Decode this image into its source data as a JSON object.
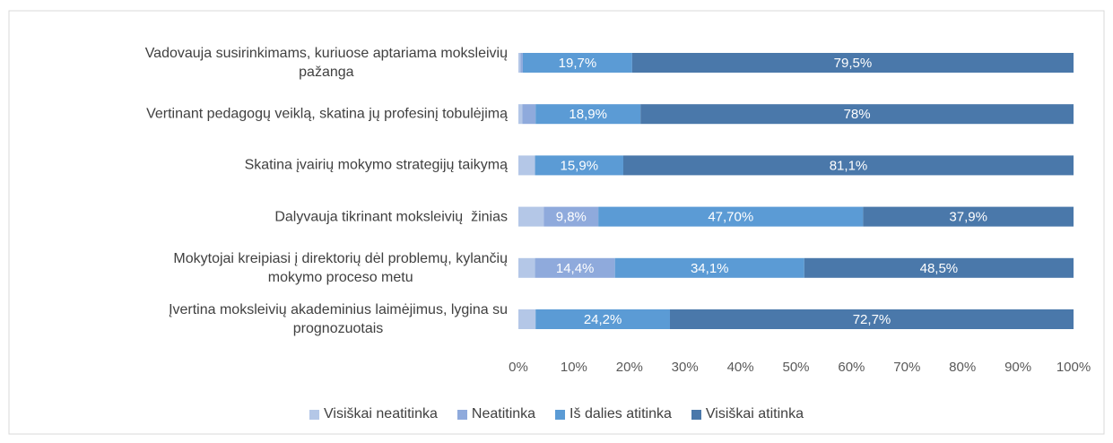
{
  "chart_data": {
    "type": "stacked-bar-horizontal",
    "categories": [
      "Vadovauja susirinkimams, kuriuose aptariama moksleivių\npažanga",
      "Vertinant pedagogų veiklą, skatina jų profesinį tobulėjimą",
      "Skatina įvairių mokymo strategijų taikymą",
      "Dalyvauja tikrinant moksleivių  žinias",
      "Mokytojai kreipiasi į direktorių dėl problemų, kylančių\nmokymo proceso metu",
      "Įvertina moksleivių akademinius laimėjimus, lygina su\nprognozuotais"
    ],
    "series": [
      {
        "name": "Visiškai neatitinka",
        "color": "#b4c7e7",
        "values": [
          0.4,
          0.7,
          3,
          4.6,
          3,
          3.1
        ],
        "value_labels": [
          null,
          null,
          null,
          null,
          null,
          null
        ]
      },
      {
        "name": "Neatitinka",
        "color": "#8faadc",
        "values": [
          0.4,
          2.4,
          0,
          9.8,
          14.4,
          0
        ],
        "value_labels": [
          null,
          null,
          null,
          "9,8%",
          "14,4%",
          null
        ]
      },
      {
        "name": "Iš dalies atitinka",
        "color": "#5b9bd5",
        "values": [
          19.7,
          18.9,
          15.9,
          47.7,
          34.1,
          24.2
        ],
        "value_labels": [
          "19,7%",
          "18,9%",
          "15,9%",
          "47,70%",
          "34,1%",
          "24,2%"
        ]
      },
      {
        "name": "Visiškai atitinka",
        "color": "#4a78aa",
        "values": [
          79.5,
          78,
          81.1,
          37.9,
          48.5,
          72.7
        ],
        "value_labels": [
          "79,5%",
          "78%",
          "81,1%",
          "37,9%",
          "48,5%",
          "72,7%"
        ]
      }
    ],
    "xlim": [
      0,
      100
    ],
    "xticks": [
      {
        "value": 0,
        "label": "0%"
      },
      {
        "value": 10,
        "label": "10%"
      },
      {
        "value": 20,
        "label": "20%"
      },
      {
        "value": 30,
        "label": "30%"
      },
      {
        "value": 40,
        "label": "40%"
      },
      {
        "value": 50,
        "label": "50%"
      },
      {
        "value": 60,
        "label": "60%"
      },
      {
        "value": 70,
        "label": "70%"
      },
      {
        "value": 80,
        "label": "80%"
      },
      {
        "value": 90,
        "label": "90%"
      },
      {
        "value": 100,
        "label": "100%"
      }
    ],
    "legend": "bottom"
  }
}
